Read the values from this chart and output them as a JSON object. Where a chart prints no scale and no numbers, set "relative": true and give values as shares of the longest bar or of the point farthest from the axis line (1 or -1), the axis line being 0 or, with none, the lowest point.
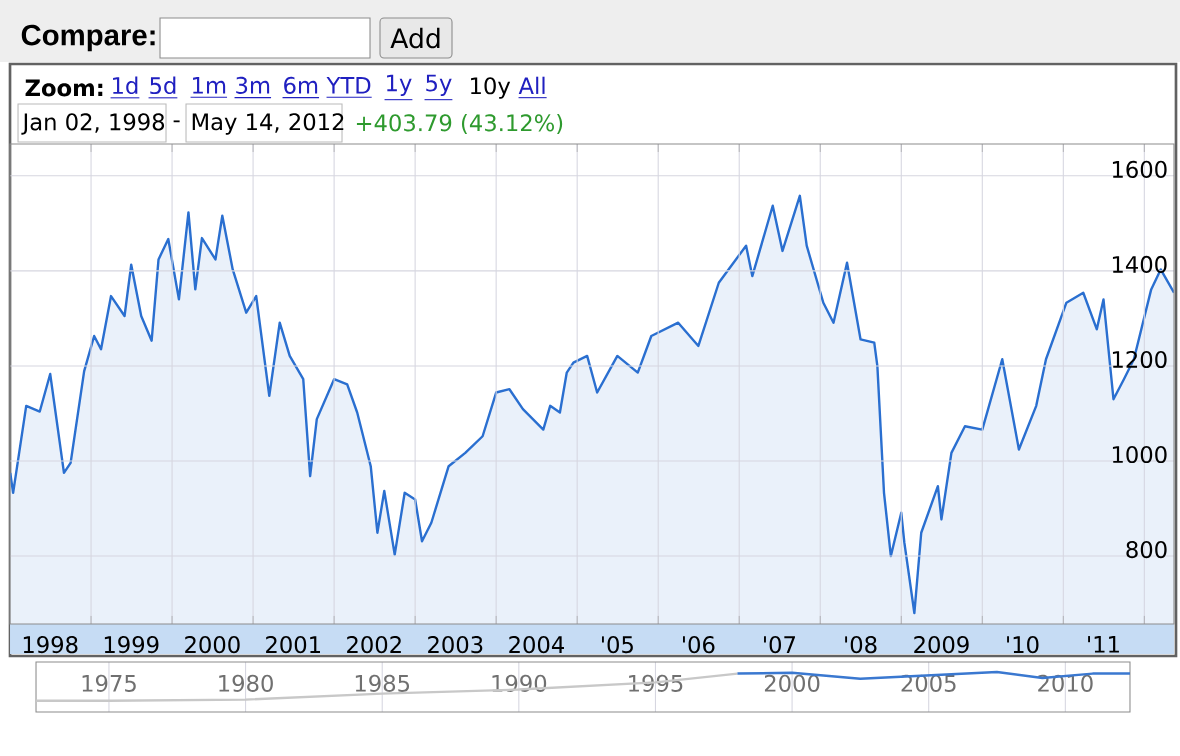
{
  "chart_data": [
    {
      "type": "area",
      "color": "#2a6fd0",
      "grid": true,
      "annotations": [
        "Compare:",
        "Add",
        "Zoom:",
        "1d",
        "5d",
        "1m",
        "3m",
        "6m",
        "YTD",
        "1y",
        "5y",
        "10y",
        "All",
        "Jan 02, 1998",
        "-",
        "May 14, 2012",
        "+403.79 (43.12%)"
      ],
      "xlim": [
        "1998-01-01",
        "2012-05-14"
      ],
      "ylim": [
        657,
        1667
      ],
      "yticks": [
        800,
        1000,
        1200,
        1400,
        1600
      ],
      "xticks": [
        {
          "value": "1998-07-01",
          "label": "1998"
        },
        {
          "value": "1999-07-01",
          "label": "1999"
        },
        {
          "value": "2000-07-01",
          "label": "2000"
        },
        {
          "value": "2001-07-01",
          "label": "2001"
        },
        {
          "value": "2002-07-01",
          "label": "2002"
        },
        {
          "value": "2003-07-01",
          "label": "2003"
        },
        {
          "value": "2004-07-01",
          "label": "2004"
        },
        {
          "value": "2005-07-01",
          "label": "'05"
        },
        {
          "value": "2006-07-01",
          "label": "'06"
        },
        {
          "value": "2007-07-01",
          "label": "'07"
        },
        {
          "value": "2008-07-01",
          "label": "'08"
        },
        {
          "value": "2009-07-01",
          "label": "2009"
        },
        {
          "value": "2010-07-01",
          "label": "'10"
        },
        {
          "value": "2011-07-01",
          "label": "'11"
        },
        {
          "value": "1999-01-01",
          "label": null
        },
        {
          "value": "2000-01-01",
          "label": null
        },
        {
          "value": "2001-01-01",
          "label": null
        },
        {
          "value": "2002-01-01",
          "label": null
        },
        {
          "value": "2003-01-01",
          "label": null
        },
        {
          "value": "2004-01-01",
          "label": null
        },
        {
          "value": "2005-01-01",
          "label": null
        },
        {
          "value": "2006-01-01",
          "label": null
        },
        {
          "value": "2007-01-01",
          "label": null
        },
        {
          "value": "2008-01-01",
          "label": null
        },
        {
          "value": "2009-01-01",
          "label": null
        },
        {
          "value": "2010-01-01",
          "label": null
        },
        {
          "value": "2011-01-01",
          "label": null
        },
        {
          "value": "2012-01-01",
          "label": null
        }
      ],
      "x": [
        "1998-01-02",
        "1998-01-15",
        "1998-03-15",
        "1998-05-15",
        "1998-07-01",
        "1998-09-01",
        "1998-10-01",
        "1998-12-01",
        "1999-01-15",
        "1999-02-15",
        "1999-04-01",
        "1999-06-01",
        "1999-07-01",
        "1999-08-15",
        "1999-10-01",
        "1999-11-01",
        "1999-12-15",
        "2000-02-01",
        "2000-03-15",
        "2000-04-15",
        "2000-05-15",
        "2000-07-15",
        "2000-08-15",
        "2000-10-01",
        "2000-12-01",
        "2001-01-15",
        "2001-03-15",
        "2001-05-01",
        "2001-06-15",
        "2001-08-15",
        "2001-09-15",
        "2001-10-15",
        "2002-01-01",
        "2002-03-01",
        "2002-04-15",
        "2002-06-15",
        "2002-07-15",
        "2002-08-15",
        "2002-10-01",
        "2002-11-15",
        "2003-01-01",
        "2003-02-01",
        "2003-03-15",
        "2003-06-01",
        "2003-08-15",
        "2003-11-01",
        "2004-01-01",
        "2004-03-01",
        "2004-05-01",
        "2004-08-01",
        "2004-09-01",
        "2004-10-15",
        "2004-11-15",
        "2004-12-15",
        "2005-02-15",
        "2005-04-01",
        "2005-07-01",
        "2005-10-01",
        "2005-12-01",
        "2006-04-01",
        "2006-07-01",
        "2006-10-01",
        "2007-02-01",
        "2007-03-01",
        "2007-06-01",
        "2007-07-15",
        "2007-10-01",
        "2007-11-01",
        "2008-01-15",
        "2008-03-01",
        "2008-05-01",
        "2008-07-01",
        "2008-09-01",
        "2008-09-15",
        "2008-10-15",
        "2008-11-15",
        "2009-01-01",
        "2009-01-15",
        "2009-03-01",
        "2009-04-01",
        "2009-06-15",
        "2009-07-01",
        "2009-08-15",
        "2009-10-15",
        "2010-01-01",
        "2010-04-01",
        "2010-06-15",
        "2010-09-01",
        "2010-10-15",
        "2011-01-15",
        "2011-04-01",
        "2011-06-01",
        "2011-07-01",
        "2011-08-15",
        "2011-10-01",
        "2011-11-15",
        "2012-02-01",
        "2012-03-15",
        "2012-05-14"
      ],
      "values": [
        975,
        933,
        1116,
        1104,
        1183,
        975,
        996,
        1189,
        1263,
        1235,
        1347,
        1305,
        1413,
        1305,
        1253,
        1424,
        1467,
        1340,
        1523,
        1361,
        1469,
        1424,
        1516,
        1403,
        1312,
        1347,
        1137,
        1291,
        1221,
        1172,
        968,
        1088,
        1172,
        1161,
        1102,
        989,
        849,
        937,
        803,
        933,
        919,
        831,
        870,
        989,
        1017,
        1052,
        1144,
        1151,
        1109,
        1066,
        1116,
        1102,
        1186,
        1207,
        1221,
        1144,
        1221,
        1186,
        1263,
        1291,
        1242,
        1375,
        1453,
        1389,
        1537,
        1442,
        1558,
        1453,
        1333,
        1291,
        1417,
        1256,
        1249,
        1200,
        933,
        800,
        891,
        828,
        680,
        849,
        947,
        877,
        1017,
        1073,
        1066,
        1214,
        1024,
        1116,
        1214,
        1333,
        1354,
        1277,
        1340,
        1130,
        1172,
        1214,
        1361,
        1403,
        1354
      ]
    },
    {
      "type": "line",
      "relative": true,
      "grid": "x",
      "xlim": [
        "1972-05-01",
        "2012-05-14"
      ],
      "xticks": [
        {
          "value": "1975-01-01",
          "label": "1975"
        },
        {
          "value": "1980-01-01",
          "label": "1980"
        },
        {
          "value": "1985-01-01",
          "label": "1985"
        },
        {
          "value": "1990-01-01",
          "label": "1990"
        },
        {
          "value": "1995-01-01",
          "label": "1995"
        },
        {
          "value": "2000-01-01",
          "label": "2000"
        },
        {
          "value": "2005-01-01",
          "label": "2005"
        },
        {
          "value": "2010-01-01",
          "label": "2010"
        }
      ],
      "series": [
        {
          "color": "#c8c8c8",
          "x": [
            "1972-05-01",
            "1975-01-01",
            "1980-01-01",
            "1985-01-01",
            "1990-01-01",
            "1995-01-01",
            "1998-01-01"
          ],
          "values": [
            0.28,
            0.28,
            0.31,
            0.46,
            0.56,
            0.74,
            0.96
          ]
        },
        {
          "color": "#3a78d0",
          "x": [
            "1998-01-01",
            "2000-01-01",
            "2002-07-01",
            "2007-07-01",
            "2009-03-01",
            "2011-01-01",
            "2012-05-14"
          ],
          "values": [
            0.96,
            0.98,
            0.83,
            1,
            0.85,
            0.96,
            0.96
          ]
        }
      ]
    }
  ]
}
